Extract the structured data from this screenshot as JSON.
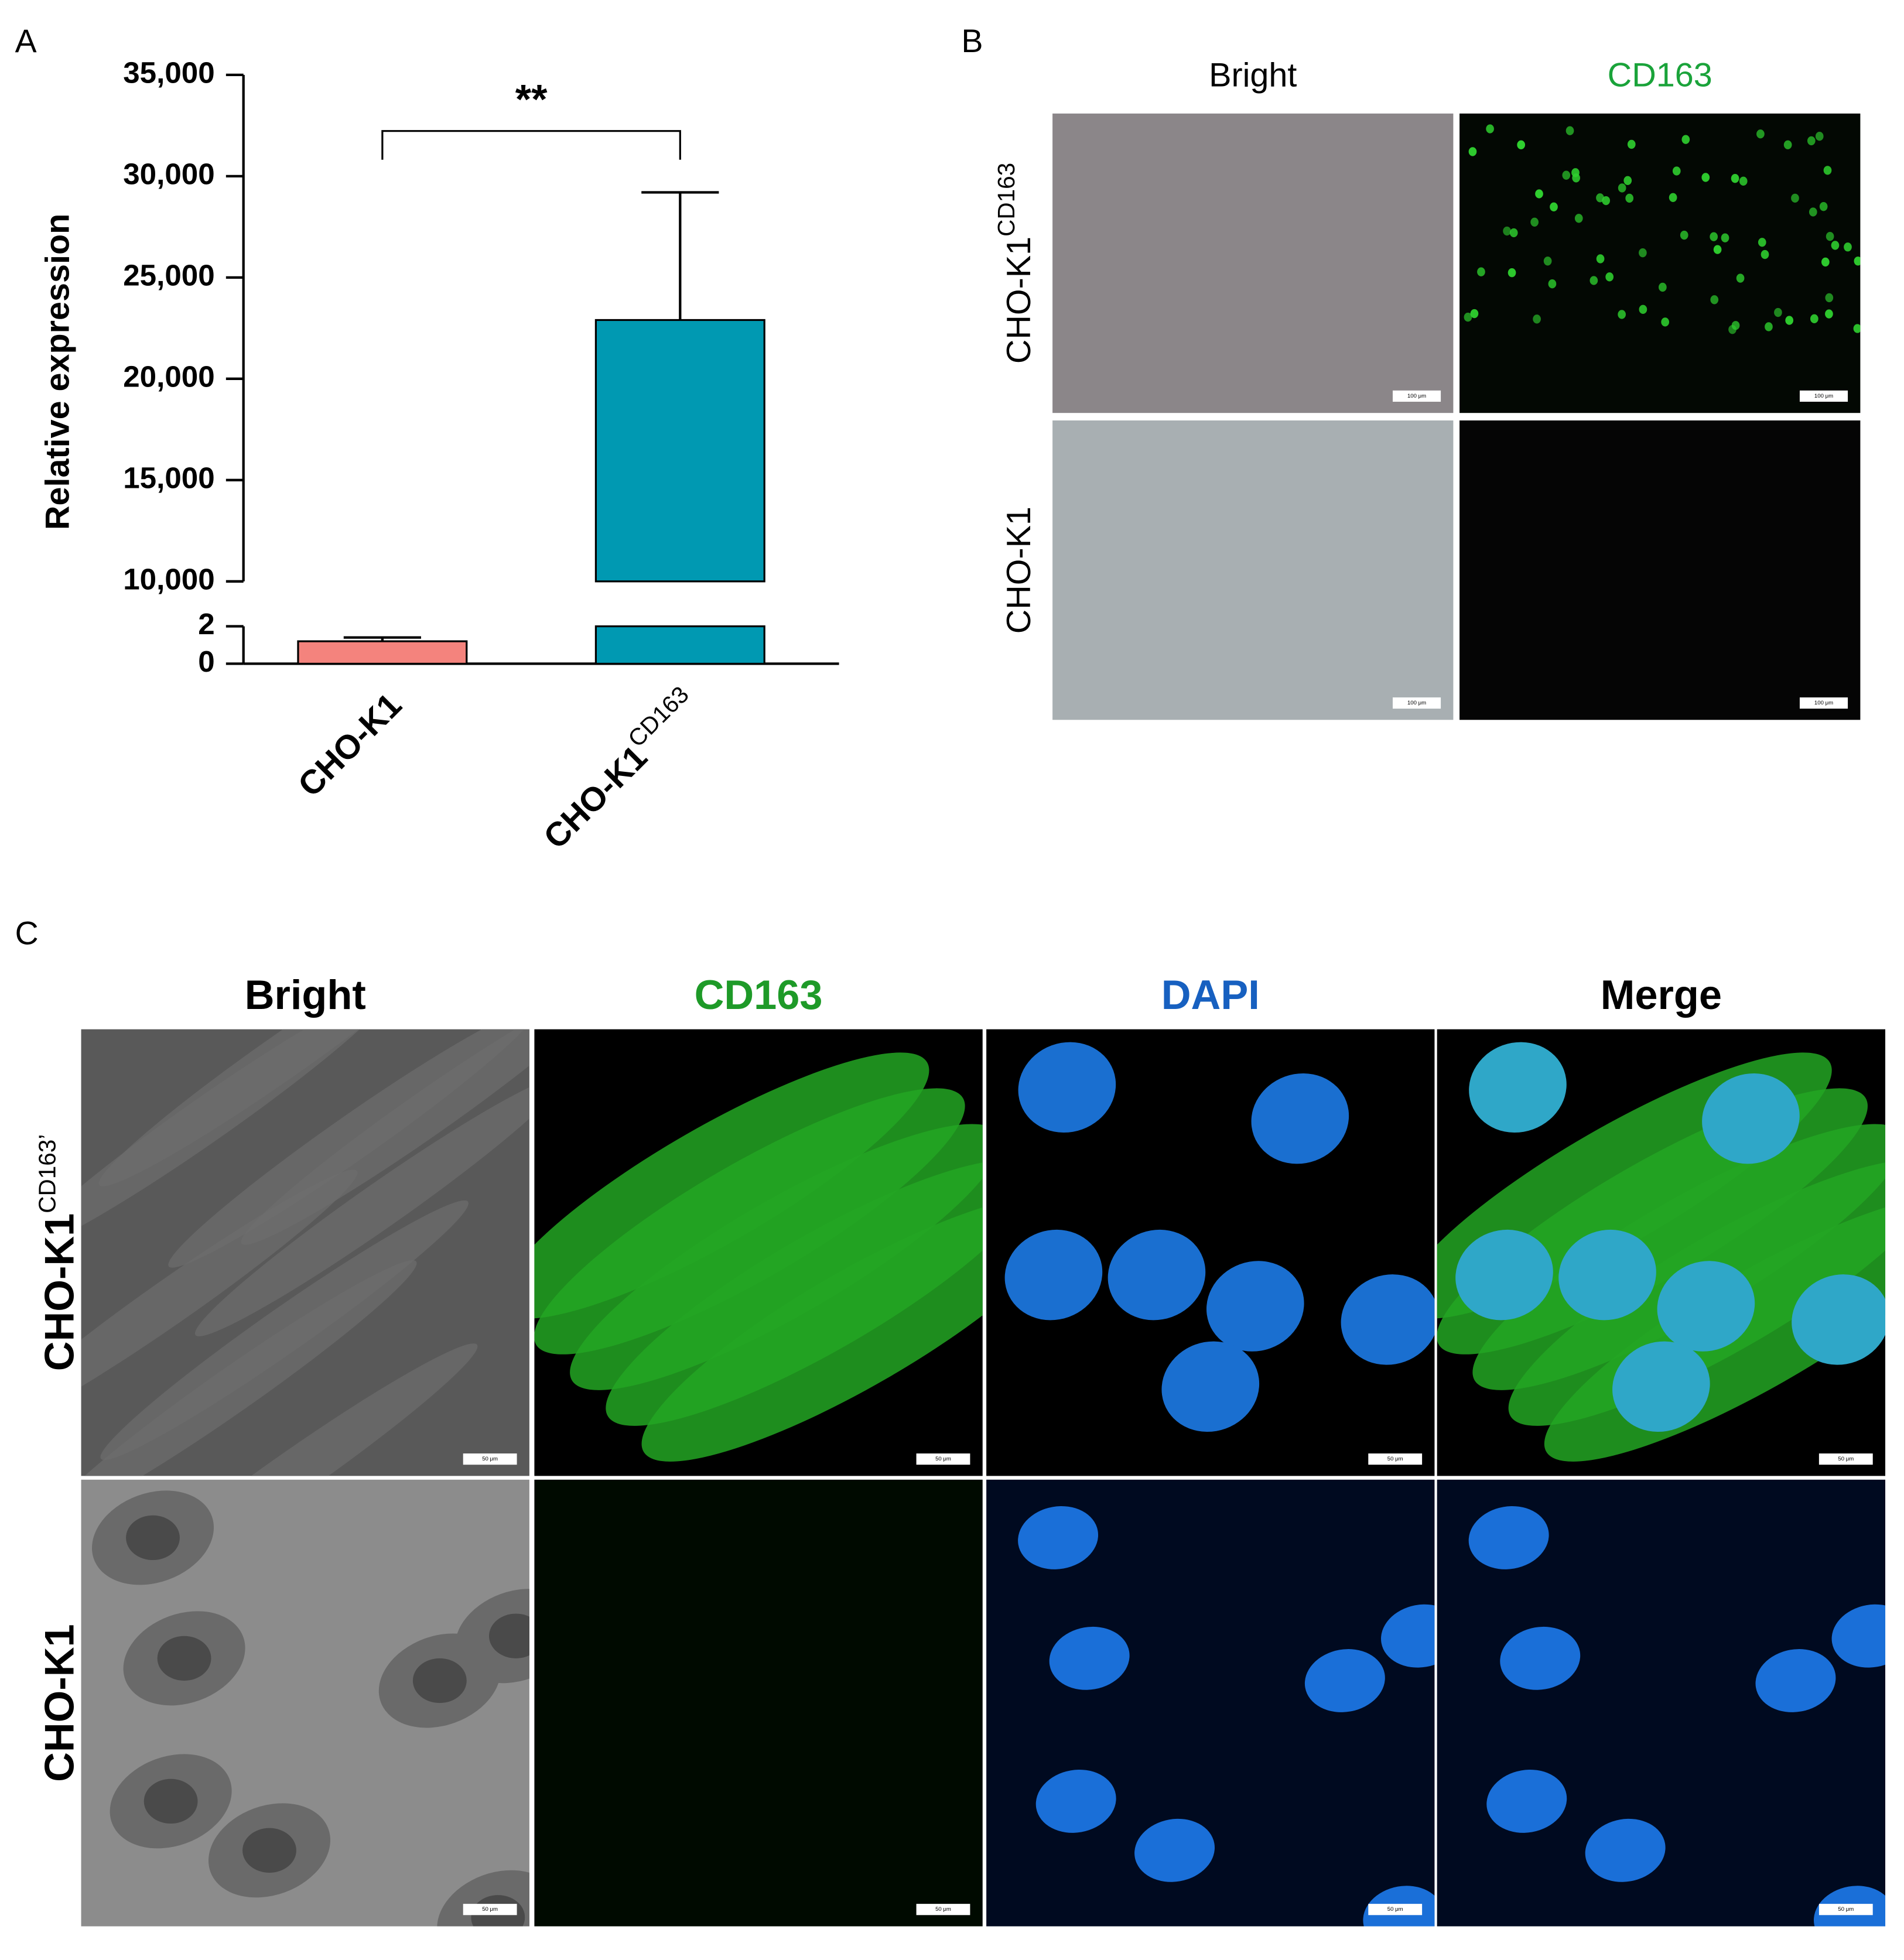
{
  "panel_labels": [
    "A",
    "B",
    "C"
  ],
  "chart_data": {
    "type": "bar",
    "y_label": "Relative expression",
    "categories": [
      {
        "text": "CHO-K1"
      },
      {
        "text": "CHO-K1",
        "sup": "CD163"
      }
    ],
    "values": [
      1.2,
      22900
    ],
    "errors": [
      0.2,
      6300
    ],
    "colors": [
      "#f4837d",
      "#0099b2"
    ],
    "ylim_lower": [
      0,
      2
    ],
    "yticks_lower": [
      0,
      2
    ],
    "ylim": [
      10000,
      35000
    ],
    "yticks": [
      {
        "value": 10000,
        "label": "10,000"
      },
      {
        "value": 15000,
        "label": "15,000"
      },
      {
        "value": 20000,
        "label": "20,000"
      },
      {
        "value": 25000,
        "label": "25,000"
      },
      {
        "value": 30000,
        "label": "30,000"
      },
      {
        "value": 35000,
        "label": "35,000"
      }
    ],
    "significance": {
      "label": "**",
      "between": [
        0,
        1
      ]
    }
  },
  "panel_b": {
    "columns": [
      "Bright",
      "CD163"
    ],
    "rows": [
      {
        "text": "CHO-K1",
        "sup": "CD163"
      },
      {
        "text": "CHO-K1"
      }
    ],
    "scale_bar": "100 μm"
  },
  "panel_c": {
    "columns": [
      "Bright",
      "CD163",
      "DAPI",
      "Merge"
    ],
    "rows": [
      {
        "text": "CHO-K1",
        "sup": "CD163’"
      },
      {
        "text": "CHO-K1"
      }
    ],
    "scale_bar": "50 μm"
  }
}
